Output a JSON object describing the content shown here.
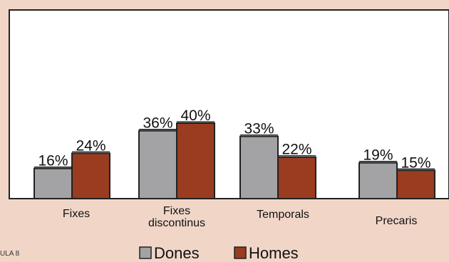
{
  "chart_data": {
    "type": "bar",
    "categories": [
      "Fixes",
      "Fixes\ndiscontinus",
      "Temporals",
      "Precaris"
    ],
    "series": [
      {
        "name": "Dones",
        "values": [
          16,
          36,
          33,
          19
        ],
        "labels": [
          "16%",
          "36%",
          "33%",
          "19%"
        ],
        "color": "#a3a3a6"
      },
      {
        "name": "Homes",
        "values": [
          24,
          40,
          22,
          15
        ],
        "labels": [
          "24%",
          "40%",
          "22%",
          "15%"
        ],
        "color": "#9a3c20"
      }
    ],
    "ylim": [
      0,
      100
    ],
    "grid": false,
    "legend": "bottom"
  },
  "footer_text": "ULA 8",
  "colors": {
    "background": "#f1d6c8",
    "plot_background": "#ffffff",
    "axis": "#222222"
  }
}
